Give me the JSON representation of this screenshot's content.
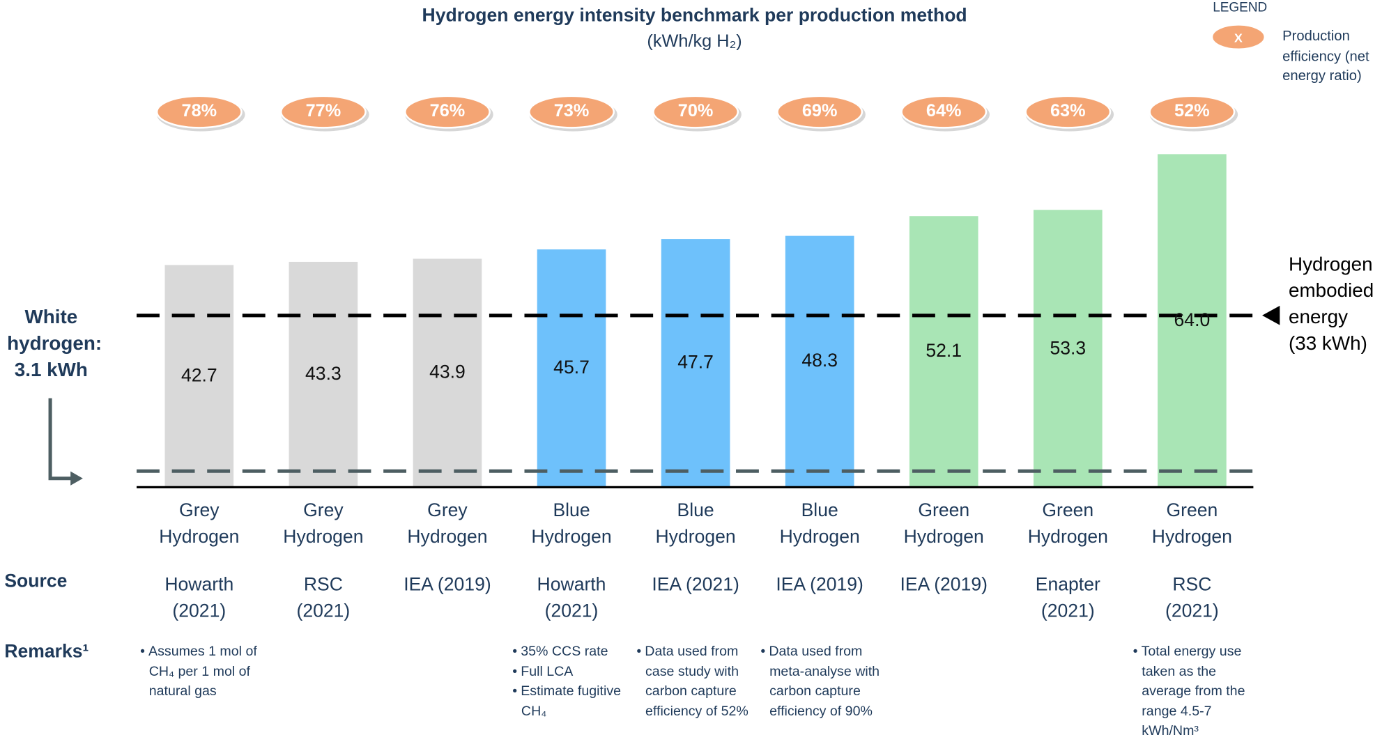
{
  "chart_data": {
    "type": "bar",
    "title": "Hydrogen energy intensity benchmark per production method",
    "subtitle": "(kWh/kg H₂)",
    "categories": [
      "Grey Hydrogen",
      "Grey Hydrogen",
      "Grey Hydrogen",
      "Blue Hydrogen",
      "Blue Hydrogen",
      "Blue Hydrogen",
      "Green Hydrogen",
      "Green Hydrogen",
      "Green Hydrogen"
    ],
    "values": [
      42.7,
      43.3,
      43.9,
      45.7,
      47.7,
      48.3,
      52.1,
      53.3,
      64
    ],
    "value_labels": [
      "42.7",
      "43.3",
      "43.9",
      "45.7",
      "47.7",
      "48.3",
      "52.1",
      "53.3",
      "64.0"
    ],
    "colors": [
      "#d9d9d9",
      "#d9d9d9",
      "#d9d9d9",
      "#6ec1fb",
      "#6ec1fb",
      "#6ec1fb",
      "#a9e5b5",
      "#a9e5b5",
      "#a9e5b5"
    ],
    "efficiency": [
      78,
      77,
      76,
      73,
      70,
      69,
      64,
      63,
      52
    ],
    "efficiency_labels": [
      "78%",
      "77%",
      "76%",
      "73%",
      "70%",
      "69%",
      "64%",
      "63%",
      "52%"
    ],
    "efficiency_color": "#f4a574",
    "ylim": [
      0,
      64
    ],
    "reference_lines": [
      {
        "value": 33,
        "label": "Hydrogen embodied energy (33 kWh)",
        "color": "#000000"
      },
      {
        "value": 3.1,
        "label": "White hydrogen: 3.1 kWh",
        "color": "#4d5e62"
      }
    ],
    "legend": {
      "title": "LEGEND",
      "symbol": "X",
      "label": "Production efficiency (net energy ratio)"
    },
    "row_labels": {
      "source": "Source",
      "remarks": "Remarks¹"
    },
    "sources": [
      "Howarth (2021)",
      "RSC (2021)",
      "IEA (2019)",
      "Howarth (2021)",
      "IEA (2021)",
      "IEA (2019)",
      "IEA (2019)",
      "Enapter (2021)",
      "RSC (2021)"
    ],
    "remarks": [
      [
        "Assumes 1 mol of CH₄ per 1 mol of natural gas"
      ],
      null,
      null,
      [
        "35% CCS rate",
        "Full LCA",
        "Estimate fugitive CH₄"
      ],
      [
        "Data used from case study with carbon capture efficiency of 52%"
      ],
      [
        "Data used from meta-analyse with carbon capture efficiency of 90%"
      ],
      null,
      null,
      [
        "Total energy use taken as the average from the range 4.5-7 kWh/Nm³"
      ]
    ]
  }
}
